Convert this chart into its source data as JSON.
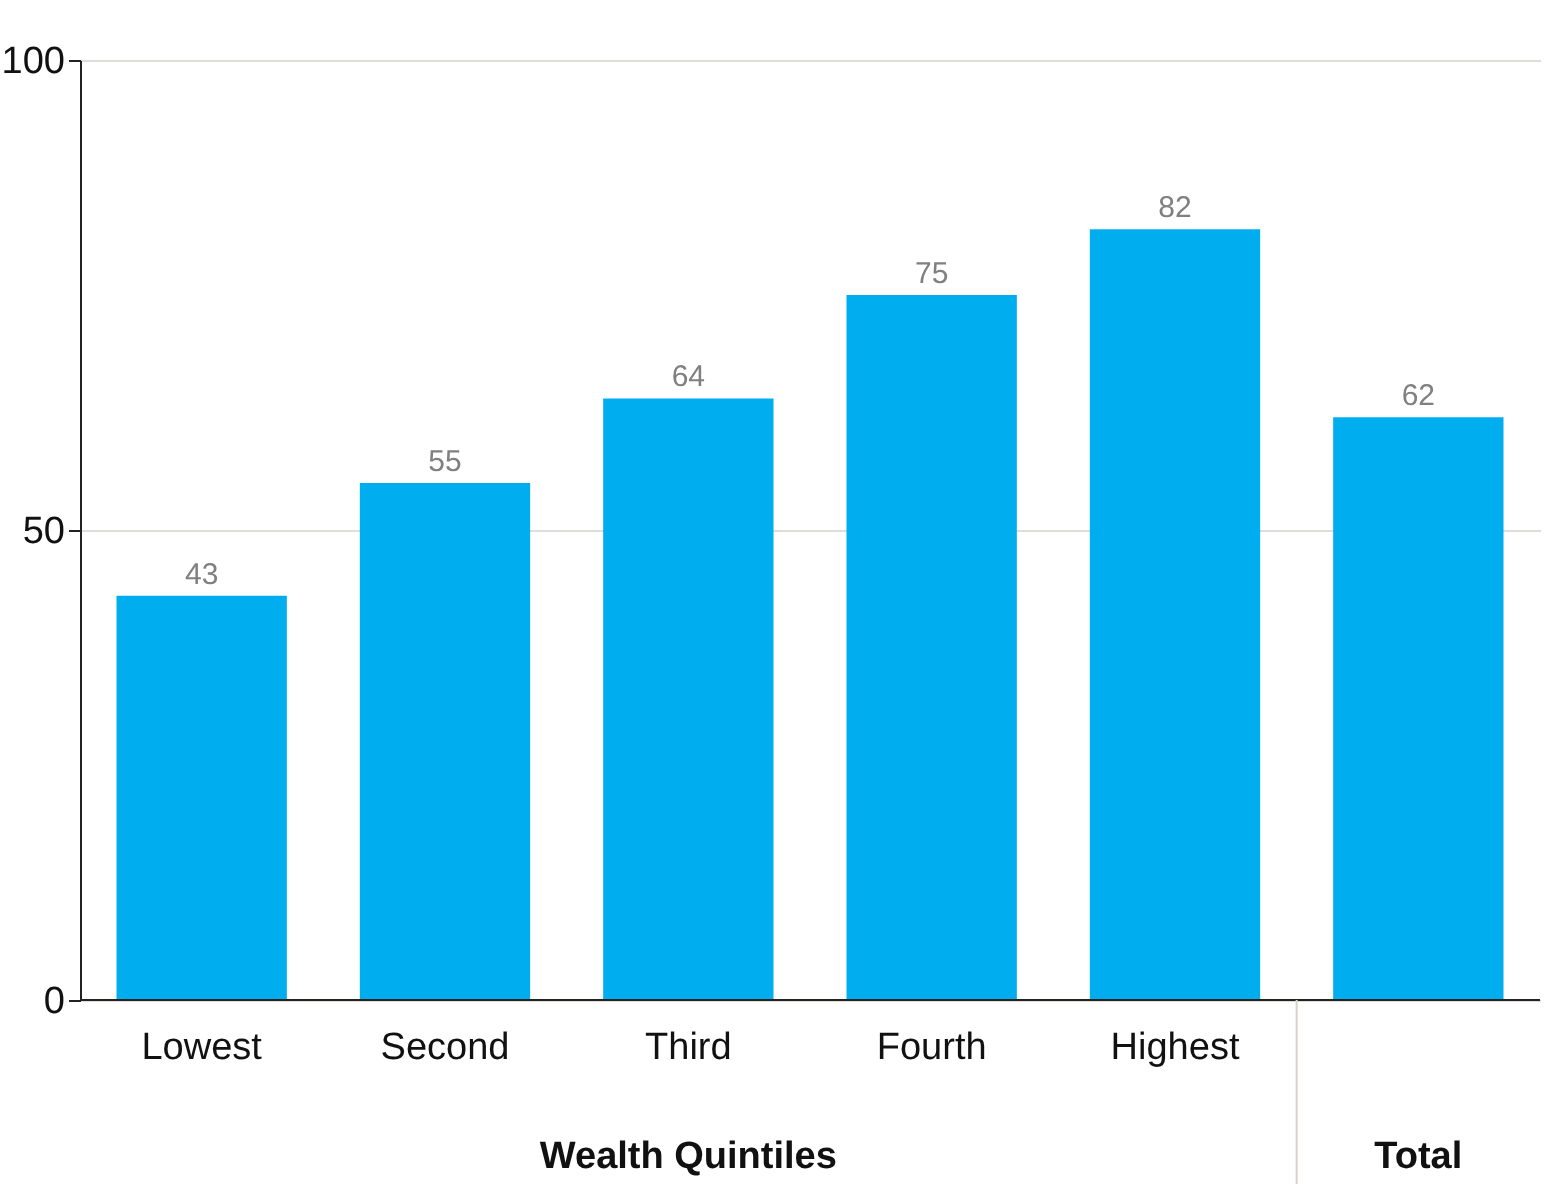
{
  "chart_data": {
    "type": "bar",
    "categories": [
      "Lowest",
      "Second",
      "Third",
      "Fourth",
      "Highest",
      null
    ],
    "values": [
      43,
      55,
      64,
      75,
      82,
      62
    ],
    "color": "#00aeef",
    "data_labels": true,
    "ylim": [
      0,
      100
    ],
    "yticks": [
      0,
      50,
      100
    ],
    "grid": "y",
    "xlabel": "Wealth Quintiles",
    "annotations": [
      "Total"
    ]
  }
}
